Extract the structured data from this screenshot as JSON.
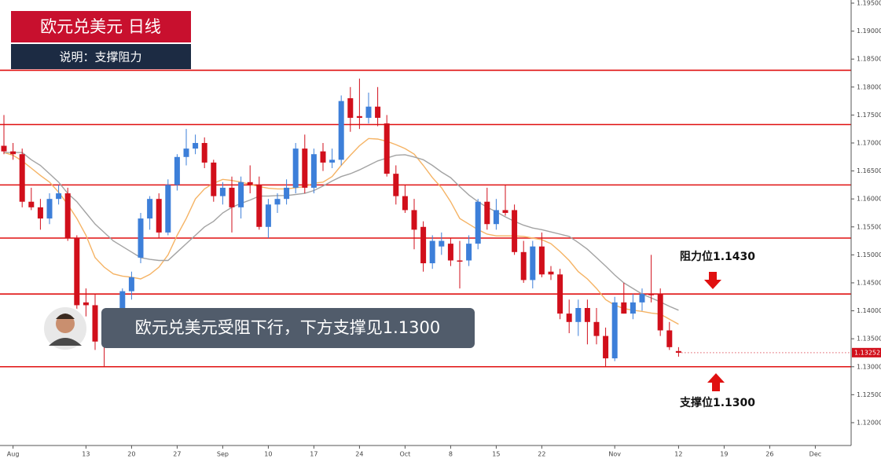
{
  "chart_data": {
    "type": "candlestick",
    "title": "欧元兑美元  日线",
    "subtitle": "说明：支撑阻力",
    "caption": "欧元兑美元受阻下行，下方支撑见1.1300",
    "annotations": [
      {
        "text": "阻力位1.1430",
        "value": 1.143
      },
      {
        "text": "支撑位1.1300",
        "value": 1.13
      }
    ],
    "categories": [
      null,
      "Aug",
      null,
      null,
      null,
      null,
      null,
      null,
      null,
      "13",
      null,
      null,
      null,
      null,
      "20",
      null,
      null,
      null,
      null,
      "27",
      null,
      null,
      null,
      null,
      "Sep",
      null,
      null,
      null,
      null,
      "10",
      null,
      null,
      null,
      null,
      "17",
      null,
      null,
      null,
      null,
      "24",
      null,
      null,
      null,
      null,
      "Oct",
      null,
      null,
      null,
      null,
      "8",
      null,
      null,
      null,
      null,
      "15",
      null,
      null,
      null,
      null,
      "22",
      null,
      null,
      null,
      null,
      null,
      null,
      null,
      "Nov",
      null,
      null,
      null,
      null,
      null,
      null,
      "12",
      null,
      null,
      null,
      null,
      "19",
      null,
      null,
      null,
      null,
      "26",
      null,
      null,
      null,
      null,
      "Dec"
    ],
    "open": [
      1.1695,
      1.1685,
      1.168,
      1.1595,
      1.1585,
      1.1565,
      1.16,
      1.161,
      1.153,
      1.1415,
      1.141,
      1.1348,
      1.1345,
      1.138,
      1.1435,
      1.1495,
      1.1565,
      1.16,
      1.154,
      1.1625,
      1.1675,
      1.169,
      1.17,
      1.1665,
      1.1605,
      1.162,
      1.1585,
      1.163,
      1.1625,
      1.155,
      1.159,
      1.16,
      1.162,
      1.169,
      1.162,
      1.1685,
      1.1665,
      1.167,
      1.178,
      1.1748,
      1.1745,
      1.1765,
      1.1735,
      1.1645,
      1.1605,
      1.158,
      1.155,
      1.1485,
      1.1515,
      1.152,
      1.149,
      1.149,
      1.152,
      1.1595,
      1.1555,
      1.158,
      1.158,
      1.1505,
      1.1455,
      1.1515,
      1.147,
      1.1465,
      1.1395,
      1.138,
      1.1405,
      1.138,
      1.1355,
      1.1315,
      1.1415,
      1.1395,
      1.1415,
      1.143,
      1.143,
      1.1365,
      1.1328,
      null,
      null,
      null,
      null,
      null,
      null,
      null,
      null,
      null,
      null,
      null,
      null,
      null,
      null,
      null
    ],
    "high": [
      1.175,
      1.17,
      1.169,
      1.162,
      1.16,
      1.161,
      1.1625,
      1.162,
      1.1535,
      1.144,
      1.143,
      1.137,
      1.1395,
      1.144,
      1.147,
      1.1575,
      1.1605,
      1.161,
      1.1635,
      1.168,
      1.1725,
      1.1715,
      1.171,
      1.167,
      1.163,
      1.164,
      1.164,
      1.166,
      1.164,
      1.16,
      1.161,
      1.1635,
      1.17,
      1.1715,
      1.169,
      1.17,
      1.169,
      1.1785,
      1.18,
      1.1815,
      1.179,
      1.18,
      1.175,
      1.166,
      1.1625,
      1.16,
      1.156,
      1.1535,
      1.154,
      1.153,
      1.1525,
      1.1535,
      1.16,
      1.162,
      1.16,
      1.1625,
      1.159,
      1.1525,
      1.1525,
      1.154,
      1.148,
      1.1475,
      1.142,
      1.142,
      1.142,
      1.1405,
      1.137,
      1.1425,
      1.145,
      1.143,
      1.144,
      1.15,
      1.144,
      1.138,
      1.1335,
      null,
      null,
      null,
      null,
      null,
      null,
      null,
      null,
      null,
      null,
      null,
      null,
      null,
      null,
      null
    ],
    "low": [
      1.168,
      1.167,
      1.1585,
      1.158,
      1.1545,
      1.1555,
      1.159,
      1.1525,
      1.14,
      1.139,
      1.133,
      1.13,
      1.1335,
      1.137,
      1.142,
      1.1485,
      1.1545,
      1.153,
      1.1535,
      1.1615,
      1.166,
      1.168,
      1.1655,
      1.1595,
      1.159,
      1.154,
      1.1565,
      1.161,
      1.1545,
      1.153,
      1.1575,
      1.159,
      1.161,
      1.161,
      1.161,
      1.165,
      1.1655,
      1.166,
      1.172,
      1.1725,
      1.1735,
      1.173,
      1.164,
      1.159,
      1.1575,
      1.151,
      1.147,
      1.1475,
      1.15,
      1.148,
      1.144,
      1.148,
      1.151,
      1.1545,
      1.1545,
      1.157,
      1.15,
      1.145,
      1.144,
      1.146,
      1.1455,
      1.1385,
      1.136,
      1.1355,
      1.134,
      1.134,
      1.13,
      1.131,
      1.1395,
      1.1385,
      1.14,
      1.1415,
      1.1355,
      1.133,
      1.1318,
      null,
      null,
      null,
      null,
      null,
      null,
      null,
      null,
      null,
      null,
      null,
      null,
      null,
      null,
      null
    ],
    "close": [
      1.1685,
      1.168,
      1.1595,
      1.1585,
      1.1565,
      1.16,
      1.161,
      1.153,
      1.141,
      1.141,
      1.1345,
      1.1345,
      1.138,
      1.1435,
      1.146,
      1.1565,
      1.16,
      1.154,
      1.1625,
      1.1675,
      1.169,
      1.17,
      1.1665,
      1.1605,
      1.162,
      1.1585,
      1.163,
      1.1625,
      1.155,
      1.159,
      1.16,
      1.162,
      1.169,
      1.162,
      1.168,
      1.1665,
      1.167,
      1.1775,
      1.1745,
      1.1745,
      1.1765,
      1.1745,
      1.1645,
      1.1605,
      1.158,
      1.1545,
      1.1485,
      1.1525,
      1.1525,
      1.149,
      1.1488,
      1.152,
      1.1595,
      1.1555,
      1.158,
      1.1575,
      1.1505,
      1.1455,
      1.1515,
      1.1465,
      1.1465,
      1.1395,
      1.138,
      1.1405,
      1.138,
      1.1355,
      1.1315,
      1.1415,
      1.1395,
      1.1415,
      1.143,
      1.1428,
      1.1365,
      1.1335,
      1.1325,
      null,
      null,
      null,
      null,
      null,
      null,
      null,
      null,
      null,
      null,
      null,
      null,
      null,
      null,
      null
    ],
    "up_color": "#3d7fd9",
    "down_color": "#d10f1b",
    "moving_averages": [
      {
        "color": "#f5b364",
        "values": [
          1.1683,
          1.1678,
          1.1668,
          1.1655,
          1.1642,
          1.163,
          1.1612,
          1.159,
          1.1565,
          1.1535,
          1.1495,
          1.1478,
          1.1466,
          1.1462,
          1.146,
          1.1457,
          1.1465,
          1.1478,
          1.15,
          1.1535,
          1.1565,
          1.16,
          1.1618,
          1.1628,
          1.1635,
          1.1633,
          1.163,
          1.1626,
          1.1622,
          1.1619,
          1.1618,
          1.1618,
          1.162,
          1.1622,
          1.1628,
          1.163,
          1.164,
          1.166,
          1.1678,
          1.1695,
          1.1708,
          1.1707,
          1.1703,
          1.1697,
          1.169,
          1.168,
          1.166,
          1.1638,
          1.162,
          1.1595,
          1.1565,
          1.1555,
          1.1545,
          1.1537,
          1.1534,
          1.1534,
          1.1534,
          1.1533,
          1.153,
          1.1527,
          1.152,
          1.1506,
          1.149,
          1.147,
          1.1457,
          1.144,
          1.142,
          1.141,
          1.1404,
          1.1401,
          1.1399,
          1.1396,
          1.1394,
          1.1385,
          1.1376,
          null,
          null,
          null,
          null,
          null,
          null,
          null,
          null,
          null,
          null,
          null,
          null,
          null,
          null,
          null
        ]
      },
      {
        "color": "#a3a3a3",
        "values": [
          1.1683,
          1.1683,
          1.1683,
          1.167,
          1.166,
          1.1645,
          1.163,
          1.161,
          1.1595,
          1.1575,
          1.1555,
          1.154,
          1.1525,
          1.1515,
          1.1505,
          1.1495,
          1.1492,
          1.149,
          1.149,
          1.1505,
          1.152,
          1.1535,
          1.155,
          1.156,
          1.1575,
          1.1585,
          1.1592,
          1.1598,
          1.1605,
          1.1605,
          1.1606,
          1.1606,
          1.1608,
          1.161,
          1.1615,
          1.1623,
          1.1632,
          1.164,
          1.1645,
          1.1652,
          1.166,
          1.1668,
          1.1673,
          1.1678,
          1.1679,
          1.1675,
          1.167,
          1.166,
          1.1648,
          1.1638,
          1.1622,
          1.1607,
          1.1595,
          1.1585,
          1.1577,
          1.1568,
          1.156,
          1.1553,
          1.1548,
          1.1545,
          1.1541,
          1.1537,
          1.1533,
          1.1522,
          1.151,
          1.1495,
          1.148,
          1.1464,
          1.145,
          1.144,
          1.143,
          1.1423,
          1.1416,
          1.1408,
          1.1401,
          null,
          null,
          null,
          null,
          null,
          null,
          null,
          null,
          null,
          null,
          null,
          null,
          null,
          null,
          null
        ]
      }
    ],
    "levels": [
      1.183,
      1.1733,
      1.1625,
      1.153,
      1.143,
      1.13
    ],
    "level_color": "#e01010",
    "last_price": {
      "value": 1.13252,
      "label": "1.13252"
    },
    "ylim": [
      1.1162,
      1.195
    ],
    "yticks": [
      {
        "value": 1.12,
        "label": "1.12000"
      },
      {
        "value": 1.125,
        "label": "1.12500"
      },
      {
        "value": 1.13,
        "label": "1.13000"
      },
      {
        "value": 1.135,
        "label": "1.13500"
      },
      {
        "value": 1.14,
        "label": "1.14000"
      },
      {
        "value": 1.145,
        "label": "1.14500"
      },
      {
        "value": 1.15,
        "label": "1.15000"
      },
      {
        "value": 1.155,
        "label": "1.15500"
      },
      {
        "value": 1.16,
        "label": "1.16000"
      },
      {
        "value": 1.165,
        "label": "1.16500"
      },
      {
        "value": 1.17,
        "label": "1.17000"
      },
      {
        "value": 1.175,
        "label": "1.17500"
      },
      {
        "value": 1.18,
        "label": "1.18000"
      },
      {
        "value": 1.185,
        "label": "1.18500"
      },
      {
        "value": 1.19,
        "label": "1.19000"
      },
      {
        "value": 1.195,
        "label": "1.19500"
      }
    ]
  }
}
